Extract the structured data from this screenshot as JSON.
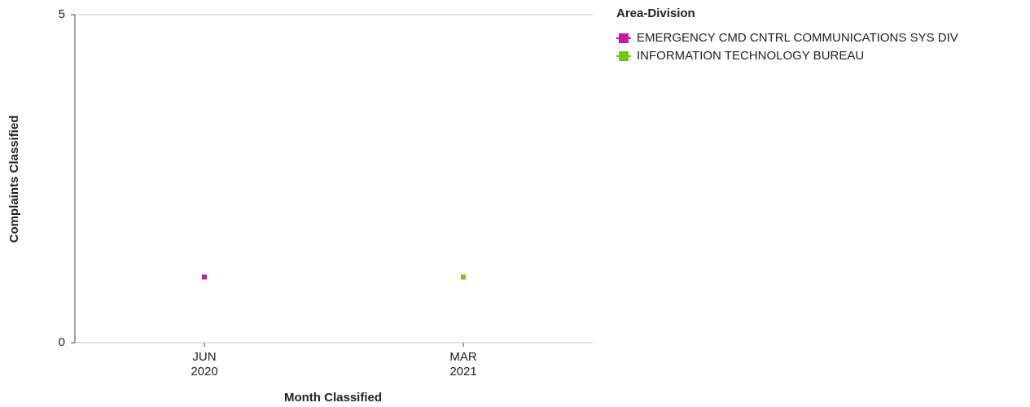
{
  "chart_data": {
    "type": "line",
    "x_label": "Month Classified",
    "y_label": "Complaints Classified",
    "legend_title": "Area-Division",
    "categories": [
      "JUN 2020",
      "MAR 2021"
    ],
    "series": [
      {
        "name": "EMERGENCY CMD CNTRL COMMUNICATIONS SYS DIV",
        "color": "#c8189b",
        "values": [
          1,
          null
        ]
      },
      {
        "name": "INFORMATION TECHNOLOGY BUREAU",
        "color": "#6fc71a",
        "values": [
          null,
          1
        ]
      }
    ],
    "ylim": [
      0,
      5
    ],
    "yticks": [
      0,
      5
    ],
    "grid": true,
    "legend": "right"
  }
}
